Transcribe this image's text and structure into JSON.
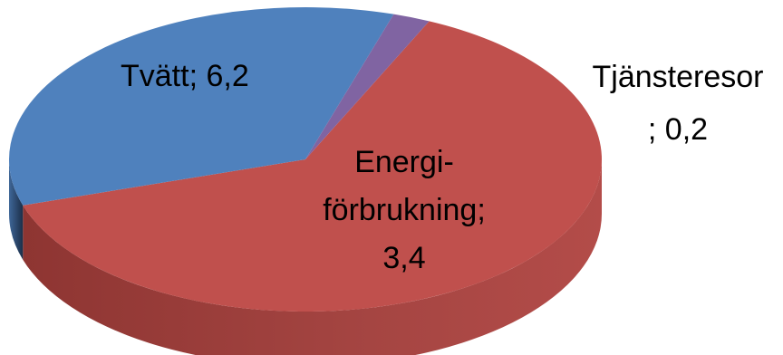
{
  "chart_data": {
    "type": "pie",
    "style": "3d",
    "categories": [
      "Tvätt",
      "Energiförbrukning",
      "Tjänsteresor"
    ],
    "values": [
      6.2,
      3.4,
      0.2
    ],
    "colors": [
      "#c0504d",
      "#4f81bd",
      "#8064a2"
    ],
    "title": "",
    "legend": "none",
    "data_labels": {
      "tvatt": "Tvätt; 6,2",
      "energi_line1": "Energi-",
      "energi_line2": "förbrukning;",
      "energi_line3": "3,4",
      "tjanst_line1": "Tjänsteresor",
      "tjanst_line2": "; 0,2"
    }
  }
}
